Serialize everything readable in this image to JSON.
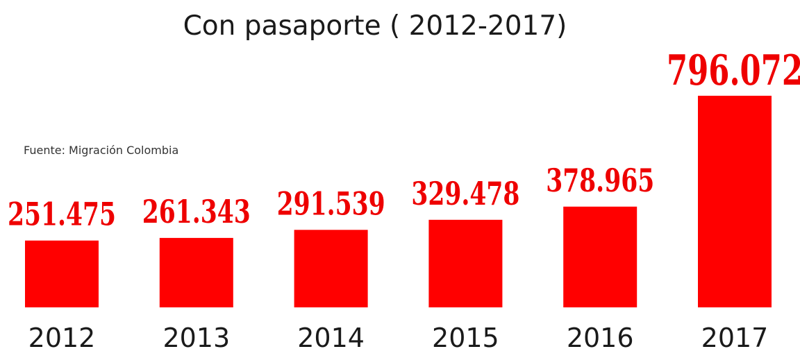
{
  "chart_data": {
    "type": "bar",
    "title": "Con pasaporte ( 2012-2017)",
    "source": "Fuente: Migración Colombia",
    "categories": [
      "2012",
      "2013",
      "2014",
      "2015",
      "2016",
      "2017"
    ],
    "values": [
      251475,
      261343,
      291539,
      329478,
      378965,
      796072
    ],
    "value_labels": [
      "251.475",
      "261.343",
      "291.539",
      "329.478",
      "378.965",
      "796.072"
    ],
    "bar_color": "#ff0000",
    "label_color": "#ee0000",
    "xlabel": "",
    "ylabel": "",
    "grid": false,
    "axis_visible": false
  }
}
